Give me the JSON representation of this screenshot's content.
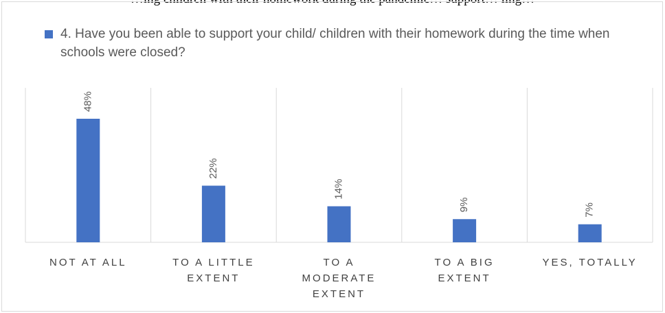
{
  "header_text": "…ing children with their homework during the pandemic… support… ling…",
  "chart_data": {
    "type": "bar",
    "title": "",
    "legend": "4. Have you been able to support your child/ children with their homework during the time when schools were closed?",
    "categories": [
      "NOT AT ALL",
      "TO A LITTLE EXTENT",
      "TO A MODERATE EXTENT",
      "TO A BIG EXTENT",
      "YES, TOTALLY"
    ],
    "values": [
      48,
      22,
      14,
      9,
      7
    ],
    "value_labels": [
      "48%",
      "22%",
      "14%",
      "9%",
      "7%"
    ],
    "ylim": [
      0,
      50
    ],
    "grid": "vertical separators",
    "legend_position": "top",
    "bar_color": "#4472c4",
    "axis_color": "#d9d9d9",
    "label_color": "#595959"
  }
}
